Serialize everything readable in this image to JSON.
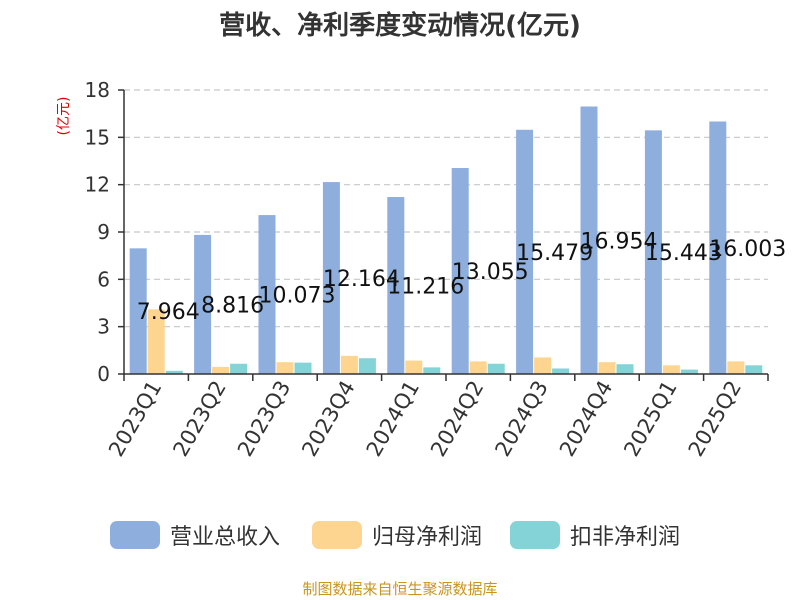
{
  "chart_data": {
    "type": "bar",
    "title": "营收、净利季度变动情况(亿元)",
    "ylabel": "(亿元)",
    "xlabel": "",
    "ylim": [
      0,
      18
    ],
    "yticks": [
      0,
      3,
      6,
      9,
      12,
      15,
      18
    ],
    "grid": true,
    "legend_position": "bottom",
    "categories": [
      "2023Q1",
      "2023Q2",
      "2023Q3",
      "2023Q4",
      "2024Q1",
      "2024Q2",
      "2024Q3",
      "2024Q4",
      "2025Q1",
      "2025Q2"
    ],
    "series": [
      {
        "name": "营业总收入",
        "color": "#8eaedd",
        "values": [
          7.964,
          8.816,
          10.073,
          12.164,
          11.216,
          13.055,
          15.479,
          16.954,
          15.443,
          16.003
        ]
      },
      {
        "name": "归母净利润",
        "color": "#fed590",
        "values": [
          4.1,
          0.45,
          0.75,
          1.15,
          0.85,
          0.8,
          1.05,
          0.75,
          0.55,
          0.8
        ]
      },
      {
        "name": "扣非净利润",
        "color": "#84d3d6",
        "values": [
          0.2,
          0.65,
          0.72,
          1.0,
          0.42,
          0.65,
          0.35,
          0.62,
          0.28,
          0.55
        ]
      }
    ],
    "data_labels": [
      "7.964",
      "8.816",
      "10.073",
      "12.164",
      "11.216",
      "13.055",
      "15.479",
      "16.954",
      "15.443",
      "16.003"
    ]
  },
  "footer": {
    "source": "制图数据来自恒生聚源数据库"
  }
}
